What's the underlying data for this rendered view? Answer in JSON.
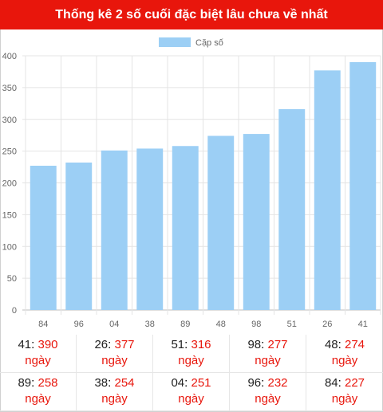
{
  "header": {
    "title": "Thống kê 2 số cuối đặc biệt lâu chưa về nhất"
  },
  "chart_data": {
    "type": "bar",
    "legend": {
      "label": "Cặp số",
      "placement": "top-center",
      "color": "#9ccff5"
    },
    "categories": [
      "84",
      "96",
      "04",
      "38",
      "89",
      "48",
      "98",
      "51",
      "26",
      "41"
    ],
    "series": [
      {
        "name": "Cặp số",
        "values": [
          227,
          232,
          251,
          254,
          258,
          274,
          277,
          316,
          377,
          390
        ]
      }
    ],
    "ylim": [
      0,
      400
    ],
    "yticks": [
      0,
      50,
      100,
      150,
      200,
      250,
      300,
      350,
      400
    ],
    "grid": true,
    "bar_color": "#9ccff5"
  },
  "stats": {
    "unit": "ngày",
    "items": [
      {
        "num": "41",
        "value": "390"
      },
      {
        "num": "26",
        "value": "377"
      },
      {
        "num": "51",
        "value": "316"
      },
      {
        "num": "98",
        "value": "277"
      },
      {
        "num": "48",
        "value": "274"
      },
      {
        "num": "89",
        "value": "258"
      },
      {
        "num": "38",
        "value": "254"
      },
      {
        "num": "04",
        "value": "251"
      },
      {
        "num": "96",
        "value": "232"
      },
      {
        "num": "84",
        "value": "227"
      }
    ]
  }
}
